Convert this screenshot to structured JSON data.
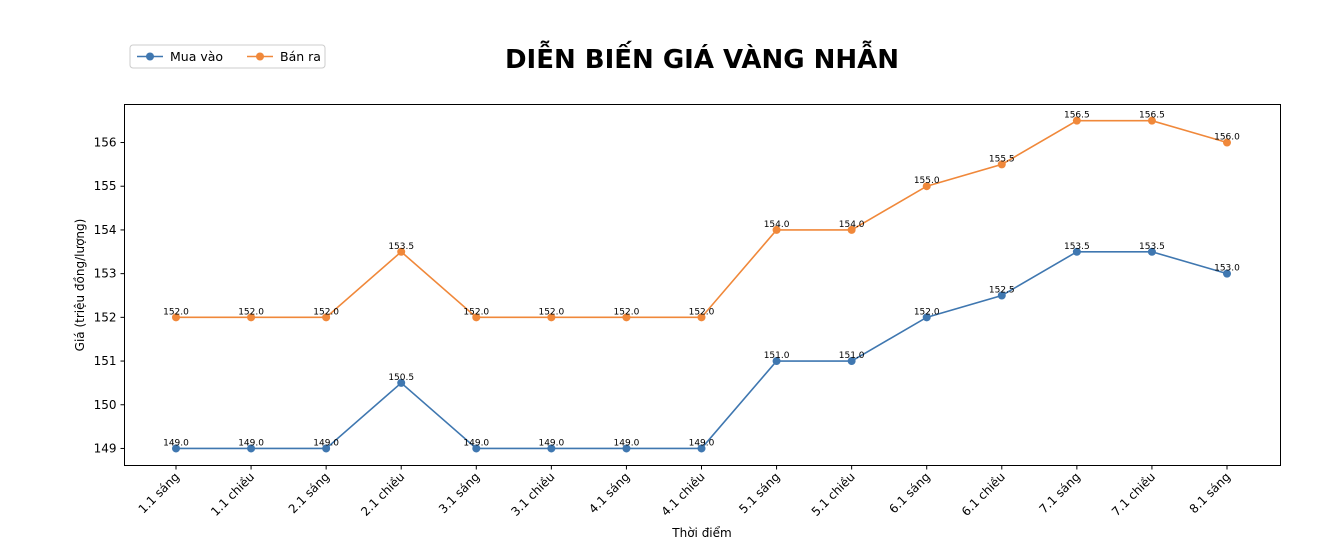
{
  "chart_data": {
    "type": "line",
    "title": "DIỄN BIẾN GIÁ VÀNG NHẪN",
    "xlabel": "Thời điểm",
    "ylabel": "Giá (triệu đồng/lượng)",
    "categories": [
      "1.1 sáng",
      "1.1 chiều",
      "2.1 sáng",
      "2.1 chiều",
      "3.1 sáng",
      "3.1 chiều",
      "4.1 sáng",
      "4.1 chiều",
      "5.1 sáng",
      "5.1 chiều",
      "6.1 sáng",
      "6.1 chiều",
      "7.1 sáng",
      "7.1 chiều",
      "8.1 sáng"
    ],
    "series": [
      {
        "name": "Mua vào",
        "color": "#3f77b0",
        "values": [
          149.0,
          149.0,
          149.0,
          150.5,
          149.0,
          149.0,
          149.0,
          149.0,
          151.0,
          151.0,
          152.0,
          152.5,
          153.5,
          153.5,
          153.0
        ]
      },
      {
        "name": "Bán ra",
        "color": "#f0883a",
        "values": [
          152.0,
          152.0,
          152.0,
          153.5,
          152.0,
          152.0,
          152.0,
          152.0,
          154.0,
          154.0,
          155.0,
          155.5,
          156.5,
          156.5,
          156.0
        ]
      }
    ],
    "yticks": [
      149,
      150,
      151,
      152,
      153,
      154,
      155,
      156
    ],
    "ylim": [
      148.61,
      156.87
    ],
    "grid": false,
    "legend": "top-left"
  }
}
